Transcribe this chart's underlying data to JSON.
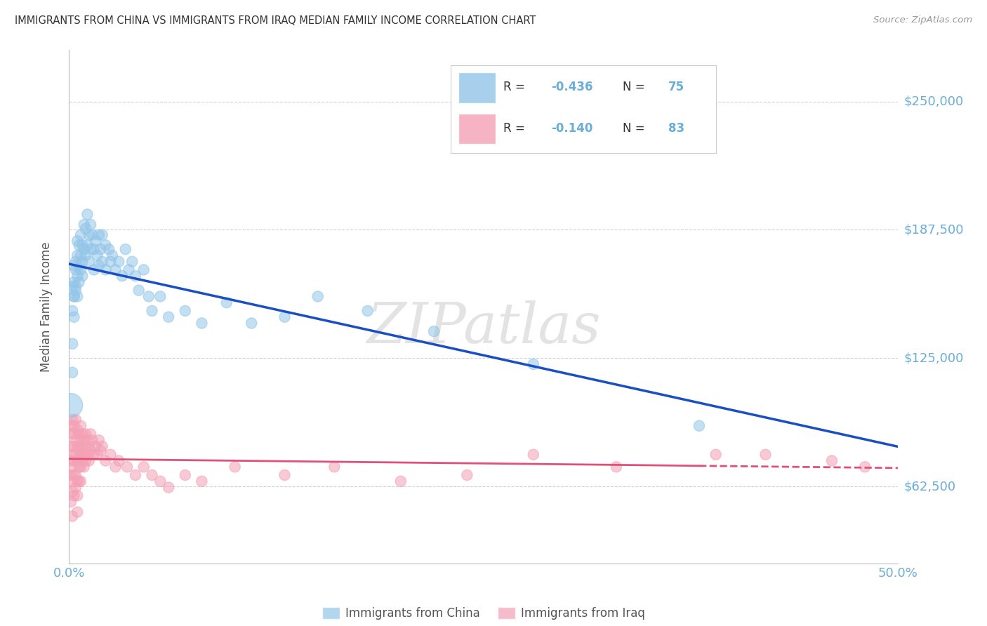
{
  "title": "IMMIGRANTS FROM CHINA VS IMMIGRANTS FROM IRAQ MEDIAN FAMILY INCOME CORRELATION CHART",
  "source": "Source: ZipAtlas.com",
  "ylabel": "Median Family Income",
  "xlim": [
    0.0,
    0.5
  ],
  "ylim": [
    25000,
    275000
  ],
  "yticks": [
    62500,
    125000,
    187500,
    250000
  ],
  "ytick_labels": [
    "$62,500",
    "$125,000",
    "$187,500",
    "$250,000"
  ],
  "xticks": [
    0.0,
    0.5
  ],
  "xtick_labels": [
    "0.0%",
    "50.0%"
  ],
  "blue_color": "#92c5e8",
  "pink_color": "#f4a0b5",
  "trend_blue": "#1a4fc4",
  "trend_pink": "#e0507a",
  "background_color": "#ffffff",
  "grid_color": "#cccccc",
  "title_color": "#333333",
  "axis_tick_color": "#6aaed6",
  "right_label_color": "#6aaed6",
  "china_data": [
    [
      0.001,
      102000
    ],
    [
      0.002,
      118000
    ],
    [
      0.002,
      132000
    ],
    [
      0.002,
      148000
    ],
    [
      0.002,
      160000
    ],
    [
      0.003,
      155000
    ],
    [
      0.003,
      162000
    ],
    [
      0.003,
      170000
    ],
    [
      0.003,
      155000
    ],
    [
      0.003,
      145000
    ],
    [
      0.004,
      168000
    ],
    [
      0.004,
      158000
    ],
    [
      0.004,
      172000
    ],
    [
      0.004,
      160000
    ],
    [
      0.005,
      165000
    ],
    [
      0.005,
      175000
    ],
    [
      0.005,
      155000
    ],
    [
      0.005,
      182000
    ],
    [
      0.006,
      170000
    ],
    [
      0.006,
      180000
    ],
    [
      0.006,
      162000
    ],
    [
      0.007,
      175000
    ],
    [
      0.007,
      168000
    ],
    [
      0.007,
      185000
    ],
    [
      0.008,
      180000
    ],
    [
      0.008,
      165000
    ],
    [
      0.008,
      172000
    ],
    [
      0.009,
      178000
    ],
    [
      0.009,
      190000
    ],
    [
      0.01,
      175000
    ],
    [
      0.01,
      188000
    ],
    [
      0.011,
      180000
    ],
    [
      0.011,
      195000
    ],
    [
      0.012,
      185000
    ],
    [
      0.012,
      172000
    ],
    [
      0.013,
      190000
    ],
    [
      0.013,
      178000
    ],
    [
      0.014,
      185000
    ],
    [
      0.015,
      178000
    ],
    [
      0.015,
      168000
    ],
    [
      0.016,
      182000
    ],
    [
      0.017,
      175000
    ],
    [
      0.018,
      185000
    ],
    [
      0.018,
      170000
    ],
    [
      0.019,
      178000
    ],
    [
      0.02,
      185000
    ],
    [
      0.02,
      172000
    ],
    [
      0.022,
      180000
    ],
    [
      0.022,
      168000
    ],
    [
      0.024,
      178000
    ],
    [
      0.025,
      172000
    ],
    [
      0.026,
      175000
    ],
    [
      0.028,
      168000
    ],
    [
      0.03,
      172000
    ],
    [
      0.032,
      165000
    ],
    [
      0.034,
      178000
    ],
    [
      0.036,
      168000
    ],
    [
      0.038,
      172000
    ],
    [
      0.04,
      165000
    ],
    [
      0.042,
      158000
    ],
    [
      0.045,
      168000
    ],
    [
      0.048,
      155000
    ],
    [
      0.05,
      148000
    ],
    [
      0.055,
      155000
    ],
    [
      0.06,
      145000
    ],
    [
      0.07,
      148000
    ],
    [
      0.08,
      142000
    ],
    [
      0.095,
      152000
    ],
    [
      0.11,
      142000
    ],
    [
      0.13,
      145000
    ],
    [
      0.15,
      155000
    ],
    [
      0.18,
      148000
    ],
    [
      0.22,
      138000
    ],
    [
      0.28,
      122000
    ],
    [
      0.38,
      92000
    ]
  ],
  "iraq_data": [
    [
      0.001,
      82000
    ],
    [
      0.001,
      75000
    ],
    [
      0.001,
      92000
    ],
    [
      0.001,
      68000
    ],
    [
      0.001,
      55000
    ],
    [
      0.002,
      88000
    ],
    [
      0.002,
      78000
    ],
    [
      0.002,
      65000
    ],
    [
      0.002,
      95000
    ],
    [
      0.002,
      72000
    ],
    [
      0.002,
      60000
    ],
    [
      0.002,
      48000
    ],
    [
      0.003,
      92000
    ],
    [
      0.003,
      82000
    ],
    [
      0.003,
      75000
    ],
    [
      0.003,
      68000
    ],
    [
      0.003,
      58000
    ],
    [
      0.003,
      88000
    ],
    [
      0.004,
      95000
    ],
    [
      0.004,
      85000
    ],
    [
      0.004,
      78000
    ],
    [
      0.004,
      68000
    ],
    [
      0.004,
      62000
    ],
    [
      0.005,
      90000
    ],
    [
      0.005,
      82000
    ],
    [
      0.005,
      75000
    ],
    [
      0.005,
      65000
    ],
    [
      0.005,
      58000
    ],
    [
      0.005,
      50000
    ],
    [
      0.006,
      88000
    ],
    [
      0.006,
      80000
    ],
    [
      0.006,
      72000
    ],
    [
      0.006,
      65000
    ],
    [
      0.007,
      92000
    ],
    [
      0.007,
      85000
    ],
    [
      0.007,
      78000
    ],
    [
      0.007,
      72000
    ],
    [
      0.007,
      65000
    ],
    [
      0.008,
      88000
    ],
    [
      0.008,
      82000
    ],
    [
      0.008,
      75000
    ],
    [
      0.009,
      85000
    ],
    [
      0.009,
      78000
    ],
    [
      0.009,
      72000
    ],
    [
      0.01,
      88000
    ],
    [
      0.01,
      80000
    ],
    [
      0.01,
      75000
    ],
    [
      0.011,
      85000
    ],
    [
      0.011,
      78000
    ],
    [
      0.012,
      82000
    ],
    [
      0.012,
      75000
    ],
    [
      0.013,
      88000
    ],
    [
      0.013,
      80000
    ],
    [
      0.014,
      85000
    ],
    [
      0.015,
      78000
    ],
    [
      0.016,
      82000
    ],
    [
      0.017,
      78000
    ],
    [
      0.018,
      85000
    ],
    [
      0.019,
      80000
    ],
    [
      0.02,
      82000
    ],
    [
      0.022,
      75000
    ],
    [
      0.025,
      78000
    ],
    [
      0.028,
      72000
    ],
    [
      0.03,
      75000
    ],
    [
      0.035,
      72000
    ],
    [
      0.04,
      68000
    ],
    [
      0.045,
      72000
    ],
    [
      0.05,
      68000
    ],
    [
      0.055,
      65000
    ],
    [
      0.06,
      62000
    ],
    [
      0.07,
      68000
    ],
    [
      0.08,
      65000
    ],
    [
      0.1,
      72000
    ],
    [
      0.13,
      68000
    ],
    [
      0.16,
      72000
    ],
    [
      0.2,
      65000
    ],
    [
      0.24,
      68000
    ],
    [
      0.28,
      78000
    ],
    [
      0.33,
      72000
    ],
    [
      0.39,
      78000
    ],
    [
      0.42,
      78000
    ],
    [
      0.46,
      75000
    ],
    [
      0.48,
      72000
    ]
  ],
  "china_large_dot": [
    0.001,
    100000
  ],
  "dot_size_default": 120,
  "dot_size_large": 600
}
